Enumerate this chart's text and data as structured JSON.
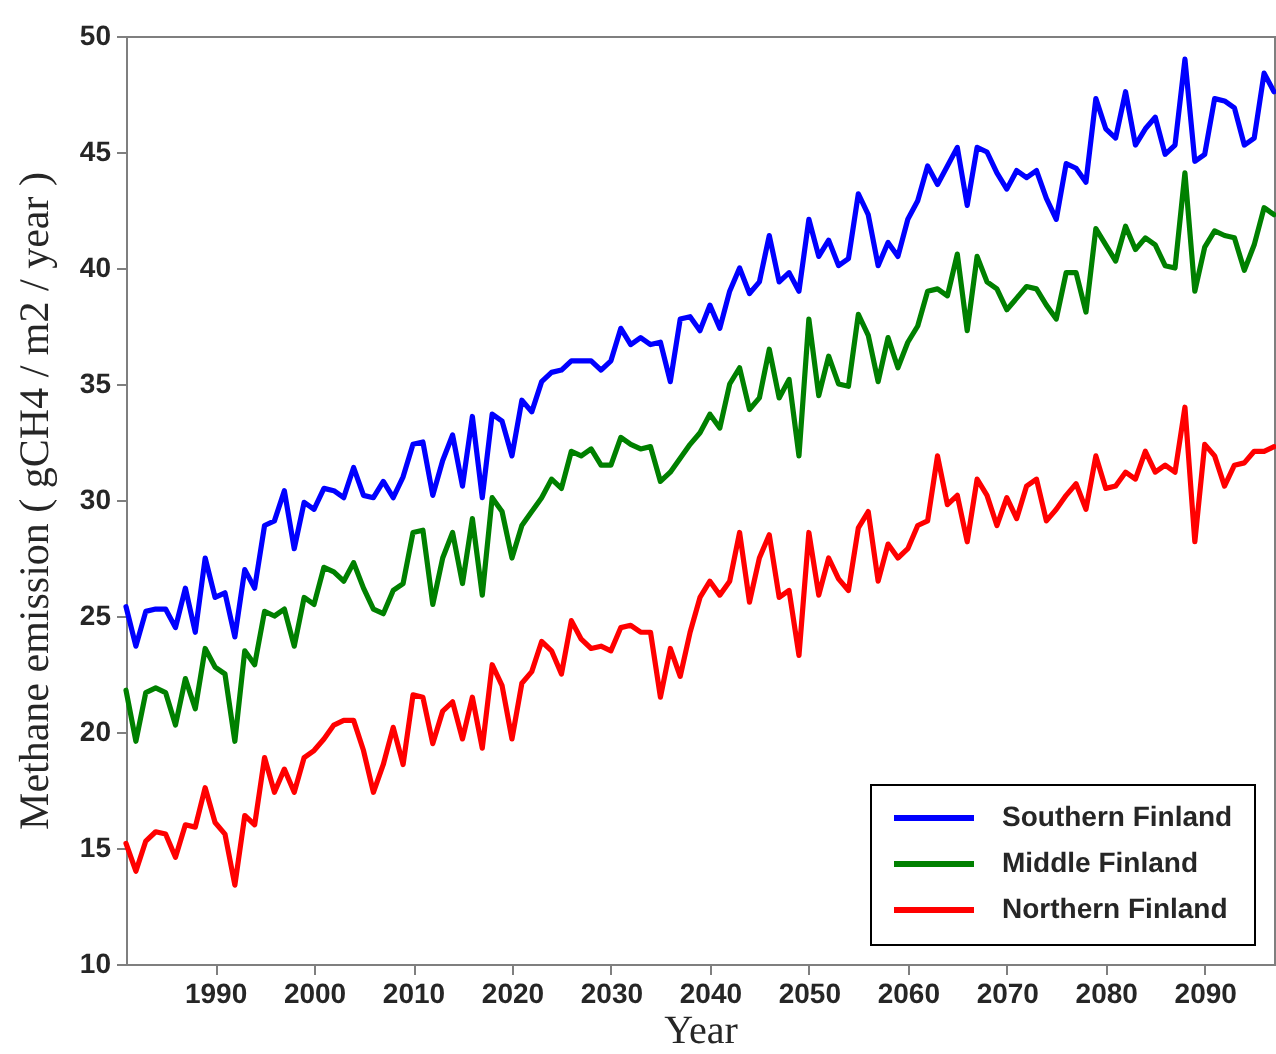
{
  "chart_data": {
    "type": "line",
    "xlabel": "Year",
    "ylabel": "Methane emission ( gCH4 / m2 / year )",
    "xlim": [
      1981,
      2097
    ],
    "ylim": [
      10,
      50
    ],
    "xticks": [
      1990,
      2000,
      2010,
      2020,
      2030,
      2040,
      2050,
      2060,
      2070,
      2080,
      2090
    ],
    "yticks": [
      10,
      15,
      20,
      25,
      30,
      35,
      40,
      45,
      50
    ],
    "grid": false,
    "legend": "bottom right",
    "x": [
      1981,
      1982,
      1983,
      1984,
      1985,
      1986,
      1987,
      1988,
      1989,
      1990,
      1991,
      1992,
      1993,
      1994,
      1995,
      1996,
      1997,
      1998,
      1999,
      2000,
      2001,
      2002,
      2003,
      2004,
      2005,
      2006,
      2007,
      2008,
      2009,
      2010,
      2011,
      2012,
      2013,
      2014,
      2015,
      2016,
      2017,
      2018,
      2019,
      2020,
      2021,
      2022,
      2023,
      2024,
      2025,
      2026,
      2027,
      2028,
      2029,
      2030,
      2031,
      2032,
      2033,
      2034,
      2035,
      2036,
      2037,
      2038,
      2039,
      2040,
      2041,
      2042,
      2043,
      2044,
      2045,
      2046,
      2047,
      2048,
      2049,
      2050,
      2051,
      2052,
      2053,
      2054,
      2055,
      2056,
      2057,
      2058,
      2059,
      2060,
      2061,
      2062,
      2063,
      2064,
      2065,
      2066,
      2067,
      2068,
      2069,
      2070,
      2071,
      2072,
      2073,
      2074,
      2075,
      2076,
      2077,
      2078,
      2079,
      2080,
      2081,
      2082,
      2083,
      2084,
      2085,
      2086,
      2087,
      2088,
      2089,
      2090,
      2091,
      2092,
      2093,
      2094,
      2095,
      2096,
      2097
    ],
    "series": [
      {
        "name": "Southern Finland",
        "color": "#0000ff",
        "values": [
          25.4,
          23.7,
          25.2,
          25.3,
          25.3,
          24.5,
          26.2,
          24.3,
          27.5,
          25.8,
          26.0,
          24.1,
          27.0,
          26.2,
          28.9,
          29.1,
          30.4,
          27.9,
          29.9,
          29.6,
          30.5,
          30.4,
          30.1,
          31.4,
          30.2,
          30.1,
          30.8,
          30.1,
          31.0,
          32.4,
          32.5,
          30.2,
          31.7,
          32.8,
          30.6,
          33.6,
          30.1,
          33.7,
          33.4,
          31.9,
          34.3,
          33.8,
          35.1,
          35.5,
          35.6,
          36.0,
          36.0,
          36.0,
          35.6,
          36.0,
          37.4,
          36.7,
          37.0,
          36.7,
          36.8,
          35.1,
          37.8,
          37.9,
          37.3,
          38.4,
          37.4,
          39.0,
          40.0,
          38.9,
          39.4,
          41.4,
          39.4,
          39.8,
          39.0,
          42.1,
          40.5,
          41.2,
          40.1,
          40.4,
          43.2,
          42.3,
          40.1,
          41.1,
          40.5,
          42.1,
          42.9,
          44.4,
          43.6,
          44.4,
          45.2,
          42.7,
          45.2,
          45.0,
          44.1,
          43.4,
          44.2,
          43.9,
          44.2,
          43.0,
          42.1,
          44.5,
          44.3,
          43.7,
          47.3,
          46.0,
          45.6,
          47.6,
          45.3,
          46.0,
          46.5,
          44.9,
          45.3,
          49.0,
          44.6,
          44.9,
          47.3,
          47.2,
          46.9,
          45.3,
          45.6,
          48.4,
          47.6
        ]
      },
      {
        "name": "Middle Finland",
        "color": "#008000",
        "values": [
          21.8,
          19.6,
          21.7,
          21.9,
          21.7,
          20.3,
          22.3,
          21.0,
          23.6,
          22.8,
          22.5,
          19.6,
          23.5,
          22.9,
          25.2,
          25.0,
          25.3,
          23.7,
          25.8,
          25.5,
          27.1,
          26.9,
          26.5,
          27.3,
          26.2,
          25.3,
          25.1,
          26.1,
          26.4,
          28.6,
          28.7,
          25.5,
          27.5,
          28.6,
          26.4,
          29.2,
          25.9,
          30.1,
          29.5,
          27.5,
          28.9,
          29.5,
          30.1,
          30.9,
          30.5,
          32.1,
          31.9,
          32.2,
          31.5,
          31.5,
          32.7,
          32.4,
          32.2,
          32.3,
          30.8,
          31.2,
          31.8,
          32.4,
          32.9,
          33.7,
          33.1,
          35.0,
          35.7,
          33.9,
          34.4,
          36.5,
          34.4,
          35.2,
          31.9,
          37.8,
          34.5,
          36.2,
          35.0,
          34.9,
          38.0,
          37.1,
          35.1,
          37.0,
          35.7,
          36.8,
          37.5,
          39.0,
          39.1,
          38.8,
          40.6,
          37.3,
          40.5,
          39.4,
          39.1,
          38.2,
          38.7,
          39.2,
          39.1,
          38.4,
          37.8,
          39.8,
          39.8,
          38.1,
          41.7,
          41.0,
          40.3,
          41.8,
          40.8,
          41.3,
          41.0,
          40.1,
          40.0,
          44.1,
          39.0,
          40.9,
          41.6,
          41.4,
          41.3,
          39.9,
          41.0,
          42.6,
          42.3
        ]
      },
      {
        "name": "Northern Finland",
        "color": "#ff0000",
        "values": [
          15.2,
          14.0,
          15.3,
          15.7,
          15.6,
          14.6,
          16.0,
          15.9,
          17.6,
          16.1,
          15.6,
          13.4,
          16.4,
          16.0,
          18.9,
          17.4,
          18.4,
          17.4,
          18.9,
          19.2,
          19.7,
          20.3,
          20.5,
          20.5,
          19.2,
          17.4,
          18.6,
          20.2,
          18.6,
          21.6,
          21.5,
          19.5,
          20.9,
          21.3,
          19.7,
          21.5,
          19.3,
          22.9,
          22.0,
          19.7,
          22.1,
          22.6,
          23.9,
          23.5,
          22.5,
          24.8,
          24.0,
          23.6,
          23.7,
          23.5,
          24.5,
          24.6,
          24.3,
          24.3,
          21.5,
          23.6,
          22.4,
          24.3,
          25.8,
          26.5,
          25.9,
          26.5,
          28.6,
          25.6,
          27.5,
          28.5,
          25.8,
          26.1,
          23.3,
          28.6,
          25.9,
          27.5,
          26.6,
          26.1,
          28.8,
          29.5,
          26.5,
          28.1,
          27.5,
          27.9,
          28.9,
          29.1,
          31.9,
          29.8,
          30.2,
          28.2,
          30.9,
          30.2,
          28.9,
          30.1,
          29.2,
          30.6,
          30.9,
          29.1,
          29.6,
          30.2,
          30.7,
          29.6,
          31.9,
          30.5,
          30.6,
          31.2,
          30.9,
          32.1,
          31.2,
          31.5,
          31.2,
          34.0,
          28.2,
          32.4,
          31.9,
          30.6,
          31.5,
          31.6,
          32.1,
          32.1,
          32.3
        ]
      }
    ]
  }
}
